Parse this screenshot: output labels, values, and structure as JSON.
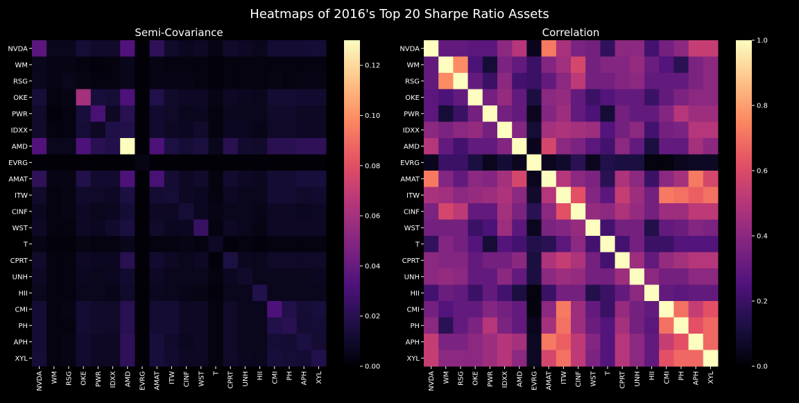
{
  "figure": {
    "title": "Heatmaps of 2016's Top 20 Sharpe Ratio Assets"
  },
  "chart_data": [
    {
      "type": "heatmap",
      "title": "Semi-Covariance",
      "labels": [
        "NVDA",
        "WM",
        "RSG",
        "OKE",
        "PWR",
        "IDXX",
        "AMD",
        "EVRG",
        "AMAT",
        "ITW",
        "CINF",
        "WST",
        "T",
        "CPRT",
        "UNH",
        "HII",
        "CMI",
        "PH",
        "APH",
        "XYL"
      ],
      "colorbar": {
        "min": 0.0,
        "max": 0.13,
        "ticks": [
          0.0,
          0.02,
          0.04,
          0.06,
          0.08,
          0.1,
          0.12
        ],
        "tick_labels": [
          "0.00",
          "0.02",
          "0.04",
          "0.06",
          "0.08",
          "0.10",
          "0.12"
        ]
      },
      "colormap": "magma",
      "values": [
        [
          0.036,
          0.006,
          0.006,
          0.013,
          0.01,
          0.01,
          0.033,
          0.001,
          0.022,
          0.01,
          0.007,
          0.008,
          0.004,
          0.01,
          0.008,
          0.006,
          0.012,
          0.012,
          0.012,
          0.013
        ],
        [
          0.006,
          0.004,
          0.004,
          0.003,
          0.002,
          0.003,
          0.006,
          0.001,
          0.004,
          0.003,
          0.003,
          0.003,
          0.002,
          0.003,
          0.003,
          0.003,
          0.003,
          0.003,
          0.003,
          0.003
        ],
        [
          0.006,
          0.004,
          0.006,
          0.004,
          0.003,
          0.003,
          0.006,
          0.001,
          0.004,
          0.004,
          0.004,
          0.003,
          0.002,
          0.003,
          0.003,
          0.003,
          0.004,
          0.003,
          0.004,
          0.004
        ],
        [
          0.013,
          0.003,
          0.004,
          0.06,
          0.014,
          0.013,
          0.032,
          0.001,
          0.018,
          0.01,
          0.008,
          0.008,
          0.004,
          0.008,
          0.007,
          0.006,
          0.012,
          0.012,
          0.011,
          0.011
        ],
        [
          0.01,
          0.002,
          0.003,
          0.014,
          0.03,
          0.008,
          0.02,
          0.001,
          0.011,
          0.009,
          0.006,
          0.007,
          0.003,
          0.007,
          0.006,
          0.006,
          0.01,
          0.01,
          0.008,
          0.008
        ],
        [
          0.01,
          0.003,
          0.003,
          0.013,
          0.008,
          0.017,
          0.018,
          0.001,
          0.011,
          0.008,
          0.007,
          0.01,
          0.003,
          0.007,
          0.007,
          0.005,
          0.009,
          0.009,
          0.008,
          0.008
        ],
        [
          0.033,
          0.006,
          0.006,
          0.032,
          0.02,
          0.018,
          0.13,
          0.001,
          0.032,
          0.016,
          0.013,
          0.015,
          0.006,
          0.02,
          0.011,
          0.01,
          0.02,
          0.02,
          0.022,
          0.022
        ],
        [
          0.001,
          0.001,
          0.001,
          0.001,
          0.001,
          0.001,
          0.001,
          0.004,
          0.001,
          0.001,
          0.001,
          0.001,
          0.001,
          0.001,
          0.001,
          0.001,
          0.001,
          0.001,
          0.001,
          0.001
        ],
        [
          0.022,
          0.004,
          0.004,
          0.018,
          0.011,
          0.011,
          0.032,
          0.001,
          0.03,
          0.012,
          0.008,
          0.01,
          0.003,
          0.011,
          0.008,
          0.007,
          0.012,
          0.012,
          0.014,
          0.014
        ],
        [
          0.01,
          0.003,
          0.004,
          0.01,
          0.009,
          0.008,
          0.016,
          0.001,
          0.012,
          0.013,
          0.008,
          0.007,
          0.003,
          0.008,
          0.006,
          0.006,
          0.012,
          0.012,
          0.01,
          0.011
        ],
        [
          0.007,
          0.003,
          0.004,
          0.008,
          0.006,
          0.007,
          0.013,
          0.001,
          0.008,
          0.008,
          0.013,
          0.007,
          0.004,
          0.006,
          0.006,
          0.005,
          0.008,
          0.008,
          0.007,
          0.008
        ],
        [
          0.008,
          0.003,
          0.003,
          0.008,
          0.007,
          0.01,
          0.015,
          0.001,
          0.01,
          0.007,
          0.007,
          0.025,
          0.003,
          0.008,
          0.006,
          0.004,
          0.008,
          0.008,
          0.008,
          0.008
        ],
        [
          0.004,
          0.002,
          0.002,
          0.004,
          0.003,
          0.003,
          0.006,
          0.001,
          0.003,
          0.003,
          0.004,
          0.003,
          0.008,
          0.002,
          0.003,
          0.002,
          0.003,
          0.003,
          0.003,
          0.003
        ],
        [
          0.01,
          0.003,
          0.003,
          0.008,
          0.007,
          0.007,
          0.02,
          0.001,
          0.011,
          0.008,
          0.006,
          0.008,
          0.002,
          0.016,
          0.007,
          0.006,
          0.009,
          0.009,
          0.009,
          0.009
        ],
        [
          0.008,
          0.003,
          0.003,
          0.007,
          0.006,
          0.007,
          0.011,
          0.001,
          0.008,
          0.006,
          0.006,
          0.006,
          0.003,
          0.007,
          0.01,
          0.006,
          0.006,
          0.006,
          0.006,
          0.007
        ],
        [
          0.006,
          0.003,
          0.003,
          0.006,
          0.006,
          0.005,
          0.01,
          0.001,
          0.007,
          0.006,
          0.005,
          0.004,
          0.002,
          0.006,
          0.006,
          0.018,
          0.006,
          0.006,
          0.006,
          0.006
        ],
        [
          0.012,
          0.003,
          0.004,
          0.012,
          0.01,
          0.009,
          0.02,
          0.001,
          0.012,
          0.012,
          0.008,
          0.008,
          0.003,
          0.009,
          0.006,
          0.006,
          0.032,
          0.018,
          0.013,
          0.014
        ],
        [
          0.012,
          0.003,
          0.003,
          0.012,
          0.01,
          0.009,
          0.02,
          0.001,
          0.012,
          0.012,
          0.008,
          0.008,
          0.003,
          0.009,
          0.006,
          0.006,
          0.018,
          0.02,
          0.012,
          0.013
        ],
        [
          0.012,
          0.003,
          0.004,
          0.011,
          0.008,
          0.008,
          0.022,
          0.001,
          0.014,
          0.01,
          0.007,
          0.008,
          0.003,
          0.009,
          0.006,
          0.006,
          0.013,
          0.012,
          0.016,
          0.012
        ],
        [
          0.013,
          0.003,
          0.004,
          0.011,
          0.008,
          0.008,
          0.022,
          0.001,
          0.014,
          0.011,
          0.008,
          0.008,
          0.003,
          0.009,
          0.007,
          0.006,
          0.014,
          0.013,
          0.012,
          0.018
        ]
      ]
    },
    {
      "type": "heatmap",
      "title": "Correlation",
      "labels": [
        "NVDA",
        "WM",
        "RSG",
        "OKE",
        "PWR",
        "IDXX",
        "AMD",
        "EVRG",
        "AMAT",
        "ITW",
        "CINF",
        "WST",
        "T",
        "CPRT",
        "UNH",
        "HII",
        "CMI",
        "PH",
        "APH",
        "XYL"
      ],
      "colorbar": {
        "min": 0.0,
        "max": 1.0,
        "ticks": [
          0.0,
          0.2,
          0.4,
          0.6,
          0.8,
          1.0
        ],
        "tick_labels": [
          "0.0",
          "0.2",
          "0.4",
          "0.6",
          "0.8",
          "1.0"
        ]
      },
      "colormap": "magma",
      "values": [
        [
          1.0,
          0.3,
          0.3,
          0.28,
          0.28,
          0.4,
          0.5,
          0.05,
          0.72,
          0.47,
          0.36,
          0.34,
          0.18,
          0.4,
          0.4,
          0.22,
          0.34,
          0.4,
          0.54,
          0.54
        ],
        [
          0.3,
          1.0,
          0.76,
          0.24,
          0.1,
          0.36,
          0.3,
          0.2,
          0.38,
          0.45,
          0.58,
          0.34,
          0.38,
          0.38,
          0.42,
          0.32,
          0.26,
          0.16,
          0.36,
          0.4
        ],
        [
          0.3,
          0.76,
          1.0,
          0.3,
          0.2,
          0.4,
          0.22,
          0.2,
          0.3,
          0.4,
          0.52,
          0.34,
          0.34,
          0.38,
          0.4,
          0.3,
          0.3,
          0.3,
          0.36,
          0.4
        ],
        [
          0.28,
          0.24,
          0.3,
          1.0,
          0.34,
          0.42,
          0.3,
          0.12,
          0.4,
          0.42,
          0.3,
          0.2,
          0.26,
          0.3,
          0.3,
          0.2,
          0.3,
          0.36,
          0.4,
          0.4
        ],
        [
          0.28,
          0.1,
          0.2,
          0.34,
          1.0,
          0.34,
          0.3,
          0.05,
          0.38,
          0.44,
          0.3,
          0.24,
          0.1,
          0.34,
          0.3,
          0.3,
          0.38,
          0.5,
          0.44,
          0.44
        ],
        [
          0.4,
          0.36,
          0.4,
          0.42,
          0.34,
          1.0,
          0.38,
          0.1,
          0.46,
          0.48,
          0.46,
          0.44,
          0.26,
          0.34,
          0.4,
          0.22,
          0.34,
          0.36,
          0.5,
          0.5
        ],
        [
          0.5,
          0.3,
          0.22,
          0.3,
          0.3,
          0.38,
          1.0,
          0.05,
          0.58,
          0.4,
          0.36,
          0.28,
          0.22,
          0.4,
          0.3,
          0.12,
          0.3,
          0.3,
          0.46,
          0.4
        ],
        [
          0.05,
          0.2,
          0.2,
          0.12,
          0.05,
          0.1,
          0.05,
          1.0,
          0.05,
          0.08,
          0.16,
          0.05,
          0.14,
          0.12,
          0.12,
          0.02,
          0.02,
          0.05,
          0.06,
          0.06
        ],
        [
          0.72,
          0.38,
          0.3,
          0.4,
          0.38,
          0.46,
          0.58,
          0.05,
          1.0,
          0.5,
          0.4,
          0.36,
          0.16,
          0.48,
          0.4,
          0.2,
          0.4,
          0.46,
          0.72,
          0.58
        ],
        [
          0.47,
          0.45,
          0.4,
          0.42,
          0.44,
          0.48,
          0.4,
          0.08,
          0.5,
          1.0,
          0.62,
          0.38,
          0.28,
          0.54,
          0.44,
          0.34,
          0.72,
          0.7,
          0.66,
          0.7
        ],
        [
          0.36,
          0.58,
          0.52,
          0.3,
          0.3,
          0.46,
          0.36,
          0.16,
          0.4,
          0.62,
          1.0,
          0.42,
          0.4,
          0.48,
          0.42,
          0.34,
          0.44,
          0.44,
          0.52,
          0.52
        ],
        [
          0.34,
          0.34,
          0.34,
          0.2,
          0.24,
          0.44,
          0.28,
          0.05,
          0.36,
          0.38,
          0.42,
          1.0,
          0.22,
          0.34,
          0.34,
          0.14,
          0.3,
          0.32,
          0.38,
          0.36
        ],
        [
          0.18,
          0.38,
          0.34,
          0.26,
          0.1,
          0.26,
          0.22,
          0.14,
          0.16,
          0.28,
          0.4,
          0.22,
          1.0,
          0.22,
          0.34,
          0.2,
          0.2,
          0.26,
          0.26,
          0.26
        ],
        [
          0.4,
          0.38,
          0.38,
          0.3,
          0.34,
          0.34,
          0.4,
          0.12,
          0.48,
          0.54,
          0.48,
          0.34,
          0.22,
          1.0,
          0.44,
          0.3,
          0.42,
          0.46,
          0.5,
          0.5
        ],
        [
          0.4,
          0.42,
          0.4,
          0.3,
          0.3,
          0.4,
          0.3,
          0.12,
          0.4,
          0.44,
          0.42,
          0.34,
          0.34,
          0.44,
          1.0,
          0.4,
          0.34,
          0.34,
          0.4,
          0.4
        ],
        [
          0.22,
          0.32,
          0.3,
          0.2,
          0.3,
          0.22,
          0.12,
          0.02,
          0.2,
          0.34,
          0.34,
          0.14,
          0.2,
          0.3,
          0.4,
          1.0,
          0.3,
          0.28,
          0.3,
          0.3
        ],
        [
          0.34,
          0.26,
          0.3,
          0.3,
          0.38,
          0.34,
          0.3,
          0.02,
          0.4,
          0.72,
          0.44,
          0.3,
          0.2,
          0.42,
          0.34,
          0.3,
          1.0,
          0.7,
          0.54,
          0.62
        ],
        [
          0.4,
          0.16,
          0.3,
          0.36,
          0.5,
          0.36,
          0.3,
          0.05,
          0.46,
          0.7,
          0.44,
          0.32,
          0.26,
          0.46,
          0.34,
          0.28,
          0.7,
          1.0,
          0.62,
          0.68
        ],
        [
          0.54,
          0.36,
          0.36,
          0.4,
          0.44,
          0.5,
          0.46,
          0.06,
          0.72,
          0.66,
          0.52,
          0.38,
          0.26,
          0.5,
          0.4,
          0.3,
          0.54,
          0.62,
          1.0,
          0.68
        ],
        [
          0.54,
          0.4,
          0.4,
          0.4,
          0.44,
          0.5,
          0.4,
          0.06,
          0.58,
          0.7,
          0.52,
          0.36,
          0.26,
          0.5,
          0.4,
          0.3,
          0.62,
          0.68,
          0.68,
          1.0
        ]
      ]
    }
  ]
}
